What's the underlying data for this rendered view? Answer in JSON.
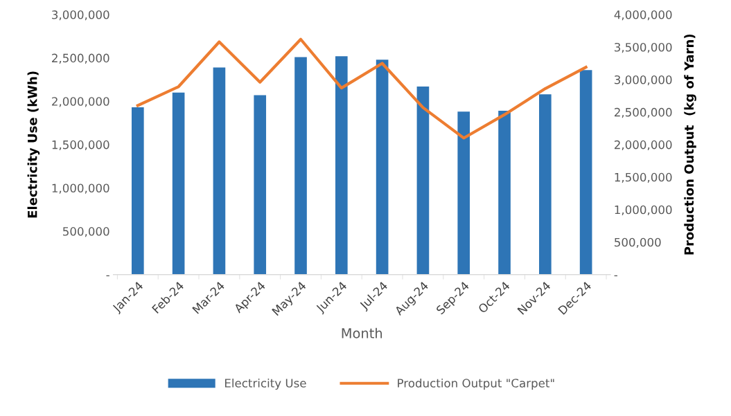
{
  "chart_data": {
    "type": "bar",
    "xlabel": "Month",
    "ylabel": "Electricity Use (kWh)",
    "y2label": "Production Output  (kg of Yarn)",
    "categories": [
      "Jan-24",
      "Feb-24",
      "Mar-24",
      "Apr-24",
      "May-24",
      "Jun-24",
      "Jul-24",
      "Aug-24",
      "Sep-24",
      "Oct-24",
      "Nov-24",
      "Dec-24"
    ],
    "series": [
      {
        "name": "Electricity Use",
        "color": "#2e75b6",
        "values": [
          1930000,
          2100000,
          2390000,
          2070000,
          2510000,
          2520000,
          2480000,
          2170000,
          1880000,
          1890000,
          2080000,
          2360000
        ]
      },
      {
        "name": "Production Output \"Carpet\"",
        "type": "line",
        "axis": "y2",
        "color": "#ed7d31",
        "values": [
          2600000,
          2890000,
          3580000,
          2960000,
          3620000,
          2870000,
          3250000,
          2570000,
          2100000,
          2460000,
          2860000,
          3190000
        ]
      }
    ],
    "ylim": [
      0,
      3000000
    ],
    "yticks": [
      {
        "value": 0,
        "label": "-"
      },
      {
        "value": 500000,
        "label": "500,000"
      },
      {
        "value": 1000000,
        "label": "1,000,000"
      },
      {
        "value": 1500000,
        "label": "1,500,000"
      },
      {
        "value": 2000000,
        "label": "2,000,000"
      },
      {
        "value": 2500000,
        "label": "2,500,000"
      },
      {
        "value": 3000000,
        "label": "3,000,000"
      }
    ],
    "y2lim": [
      0,
      4000000
    ],
    "y2ticks": [
      {
        "value": 0,
        "label": "-"
      },
      {
        "value": 500000,
        "label": "500,000"
      },
      {
        "value": 1000000,
        "label": "1,000,000"
      },
      {
        "value": 1500000,
        "label": "1,500,000"
      },
      {
        "value": 2000000,
        "label": "2,000,000"
      },
      {
        "value": 2500000,
        "label": "2,500,000"
      },
      {
        "value": 3000000,
        "label": "3,000,000"
      },
      {
        "value": 3500000,
        "label": "3,500,000"
      },
      {
        "value": 4000000,
        "label": "4,000,000"
      }
    ],
    "grid": false,
    "legend": "bottom"
  }
}
